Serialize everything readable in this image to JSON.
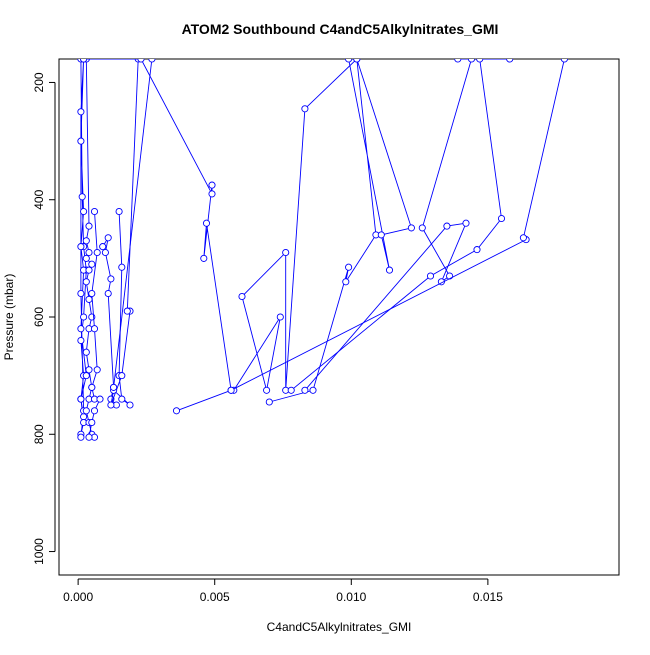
{
  "chart_data": {
    "type": "line",
    "title": "ATOM2 Southbound C4andC5Alkylnitrates_GMI",
    "xlabel": "C4andC5Alkylnitrates_GMI",
    "ylabel": "Pressure (mbar)",
    "xlim": [
      -0.0007,
      0.0198
    ],
    "ylim": [
      1040,
      160
    ],
    "y_reversed": true,
    "x_ticks": [
      0.0,
      0.005,
      0.01,
      0.015
    ],
    "x_tick_labels": [
      "0.000",
      "0.005",
      "0.010",
      "0.015"
    ],
    "y_ticks": [
      200,
      400,
      600,
      800,
      1000
    ],
    "y_tick_labels": [
      "200",
      "400",
      "600",
      "800",
      "1000"
    ],
    "grid": false,
    "color": "#0000ff",
    "series": [
      {
        "x": [
          0.0001,
          0.00015,
          0.0002,
          0.0003,
          0.0002,
          0.0001,
          0.0002,
          0.0001,
          0.0002,
          0.0001,
          0.0002,
          0.0001,
          0.0003,
          0.0001,
          0.0002,
          0.0001,
          0.0002,
          0.0001,
          0.0002,
          0.0001,
          0.0001,
          0.0002,
          0.0001
        ],
        "y": [
          160,
          395,
          480,
          520,
          600,
          640,
          700,
          740,
          770,
          800,
          780,
          740,
          700,
          620,
          520,
          480,
          420,
          300,
          160,
          250,
          560,
          760,
          805
        ]
      },
      {
        "x": [
          0.0003,
          0.0004,
          0.0003,
          0.0004,
          0.0003,
          0.0005,
          0.0004,
          0.0003,
          0.0004,
          0.0005,
          0.0004,
          0.0003,
          0.0004,
          0.0005,
          0.0004,
          0.0003,
          0.0004,
          0.0005,
          0.0006
        ],
        "y": [
          160,
          445,
          470,
          490,
          500,
          510,
          520,
          540,
          570,
          600,
          620,
          660,
          690,
          720,
          740,
          760,
          780,
          800,
          805
        ]
      },
      {
        "x": [
          0.0006,
          0.0007,
          0.0005,
          0.0006,
          0.0007,
          0.0005,
          0.0006,
          0.0008,
          0.0006,
          0.0005,
          0.0004
        ],
        "y": [
          420,
          490,
          560,
          620,
          690,
          720,
          740,
          740,
          760,
          780,
          805
        ]
      },
      {
        "x": [
          0.0009,
          0.0011,
          0.001,
          0.0012,
          0.0011,
          0.0013,
          0.0012,
          0.0014
        ],
        "y": [
          480,
          465,
          490,
          535,
          560,
          720,
          740,
          750
        ]
      },
      {
        "x": [
          0.0015,
          0.0016,
          0.0015,
          0.0016,
          0.0019,
          0.0013,
          0.0012,
          0.0016,
          0.0019
        ],
        "y": [
          420,
          515,
          700,
          740,
          750,
          725,
          750,
          700,
          590
        ]
      },
      {
        "x": [
          0.0018,
          0.0022
        ],
        "y": [
          590,
          160
        ]
      },
      {
        "x": [
          0.0013,
          0.0027
        ],
        "y": [
          720,
          160
        ]
      },
      {
        "x": [
          0.0036,
          0.0056,
          0.0047,
          0.0046,
          0.0049,
          0.0049,
          0.0023,
          0.0002
        ],
        "y": [
          760,
          725,
          440,
          500,
          375,
          390,
          160,
          160
        ]
      },
      {
        "x": [
          0.0057,
          0.0074,
          0.0069,
          0.006,
          0.0076,
          0.0076,
          0.0083,
          0.0102
        ],
        "y": [
          725,
          600,
          725,
          565,
          490,
          725,
          245,
          160
        ]
      },
      {
        "x": [
          0.007,
          0.0086,
          0.0099,
          0.0098,
          0.0109,
          0.0102,
          0.0122,
          0.0111,
          0.0114,
          0.0099
        ],
        "y": [
          745,
          725,
          515,
          540,
          460,
          160,
          448,
          460,
          520,
          160
        ]
      },
      {
        "x": [
          0.0083,
          0.0135,
          0.0142,
          0.0133,
          0.0136,
          0.0126,
          0.0144,
          0.0139
        ],
        "y": [
          725,
          445,
          440,
          540,
          530,
          448,
          160,
          160
        ]
      },
      {
        "x": [
          0.0078,
          0.0129,
          0.0146,
          0.0155,
          0.0147,
          0.0158
        ],
        "y": [
          725,
          530,
          485,
          432,
          160,
          160
        ]
      },
      {
        "x": [
          0.0056,
          0.0164,
          0.0163,
          0.0178
        ],
        "y": [
          725,
          468,
          465,
          160
        ]
      }
    ]
  }
}
